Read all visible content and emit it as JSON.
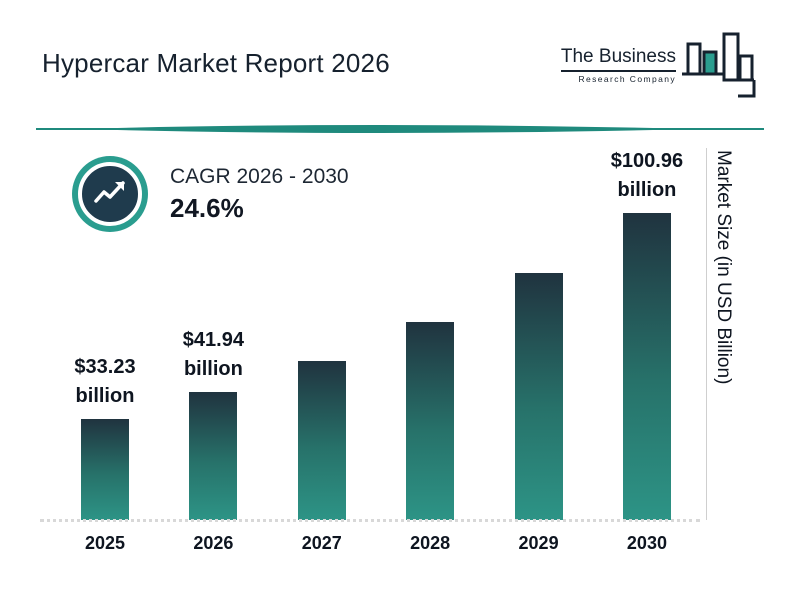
{
  "page": {
    "title": "Hypercar Market Report 2026"
  },
  "logo": {
    "line1": "The Business",
    "line2": "Research Company"
  },
  "cagr": {
    "label": "CAGR 2026 - 2030",
    "value": "24.6%"
  },
  "y_axis_label": "Market Size (in USD Billion)",
  "chart_data": {
    "type": "bar",
    "title": "Hypercar Market Report 2026",
    "categories": [
      "2025",
      "2026",
      "2027",
      "2028",
      "2029",
      "2030"
    ],
    "values": [
      33.23,
      41.94,
      52.26,
      65.11,
      81.13,
      100.96
    ],
    "value_labels": [
      [
        "$33.23",
        "billion"
      ],
      [
        "$41.94",
        "billion"
      ],
      null,
      null,
      null,
      [
        "$100.96",
        "billion"
      ]
    ],
    "xlabel": "",
    "ylabel": "Market Size (in USD Billion)",
    "ylim": [
      0,
      110
    ],
    "grid": "off",
    "legend": "none",
    "bar_color_top": "#20333f",
    "bar_color_bottom": "#2d9486",
    "accent_teal": "#2a9d8f",
    "dark_navy": "#1f3b4d"
  }
}
